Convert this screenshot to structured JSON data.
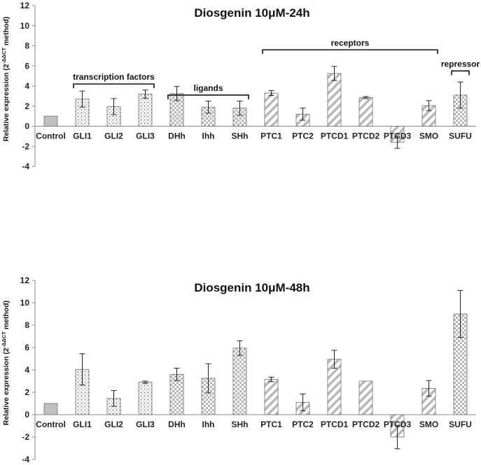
{
  "chart_data": [
    {
      "type": "bar",
      "title": "Diosgenin 10μM-24h",
      "ylabel": "Relative expression (2",
      "ylabel_superscript": "-ΔΔCT",
      "ylabel_suffix": " method)",
      "ylim": [
        -4,
        12
      ],
      "yticks": [
        -4,
        -2,
        0,
        2,
        4,
        6,
        8,
        10,
        12
      ],
      "grid": false,
      "categories": [
        "Control",
        "GLI1",
        "GLI2",
        "GLI3",
        "DHh",
        "Ihh",
        "SHh",
        "PTC1",
        "PTC2",
        "PTCD1",
        "PTCD2",
        "PTCD3",
        "SMO",
        "SUFU"
      ],
      "values": [
        1.0,
        2.7,
        1.95,
        3.2,
        3.25,
        1.9,
        1.8,
        3.3,
        1.2,
        5.25,
        2.85,
        -1.6,
        2.05,
        3.1
      ],
      "errors": [
        0,
        0.8,
        0.8,
        0.4,
        0.7,
        0.6,
        0.7,
        0.25,
        0.6,
        0.7,
        0.1,
        0.6,
        0.5,
        1.3
      ],
      "patterns": [
        "solid",
        "dots",
        "dots",
        "dots",
        "checker",
        "checker",
        "checker",
        "diag",
        "diag",
        "diag",
        "diag",
        "diag",
        "diag",
        "checker"
      ],
      "groups": [
        {
          "label": "transcription factors",
          "from": 1,
          "to": 3,
          "y": 4.2
        },
        {
          "label": "ligands",
          "from": 4,
          "to": 6,
          "y": 3.1
        },
        {
          "label": "receptors",
          "from": 7,
          "to": 12,
          "y": 7.6
        },
        {
          "label": "repressor",
          "from": 13,
          "to": 13,
          "y": 5.5
        }
      ]
    },
    {
      "type": "bar",
      "title": "Diosgenin 10μM-48h",
      "ylabel": "Relative expression (2",
      "ylabel_superscript": "-ΔΔCT",
      "ylabel_suffix": " method)",
      "ylim": [
        -4,
        12
      ],
      "yticks": [
        -4,
        -2,
        0,
        2,
        4,
        6,
        8,
        10,
        12
      ],
      "grid": false,
      "categories": [
        "Control",
        "GLI1",
        "GLI2",
        "GLI3",
        "DHh",
        "Ihh",
        "SHh",
        "PTC1",
        "PTC2",
        "PTCD1",
        "PTCD2",
        "PTCD3",
        "SMO",
        "SUFU"
      ],
      "values": [
        1.0,
        4.05,
        1.45,
        2.9,
        3.6,
        3.25,
        5.95,
        3.15,
        1.1,
        4.95,
        3.0,
        -2.0,
        2.35,
        9.0
      ],
      "errors": [
        0,
        1.4,
        0.7,
        0.1,
        0.55,
        1.3,
        0.65,
        0.2,
        0.75,
        0.8,
        0.0,
        1.05,
        0.7,
        2.1
      ],
      "patterns": [
        "solid",
        "dots",
        "dots",
        "dots",
        "checker",
        "checker",
        "checker",
        "diag",
        "diag",
        "diag",
        "diag",
        "diag",
        "diag",
        "checker"
      ],
      "groups": []
    }
  ]
}
